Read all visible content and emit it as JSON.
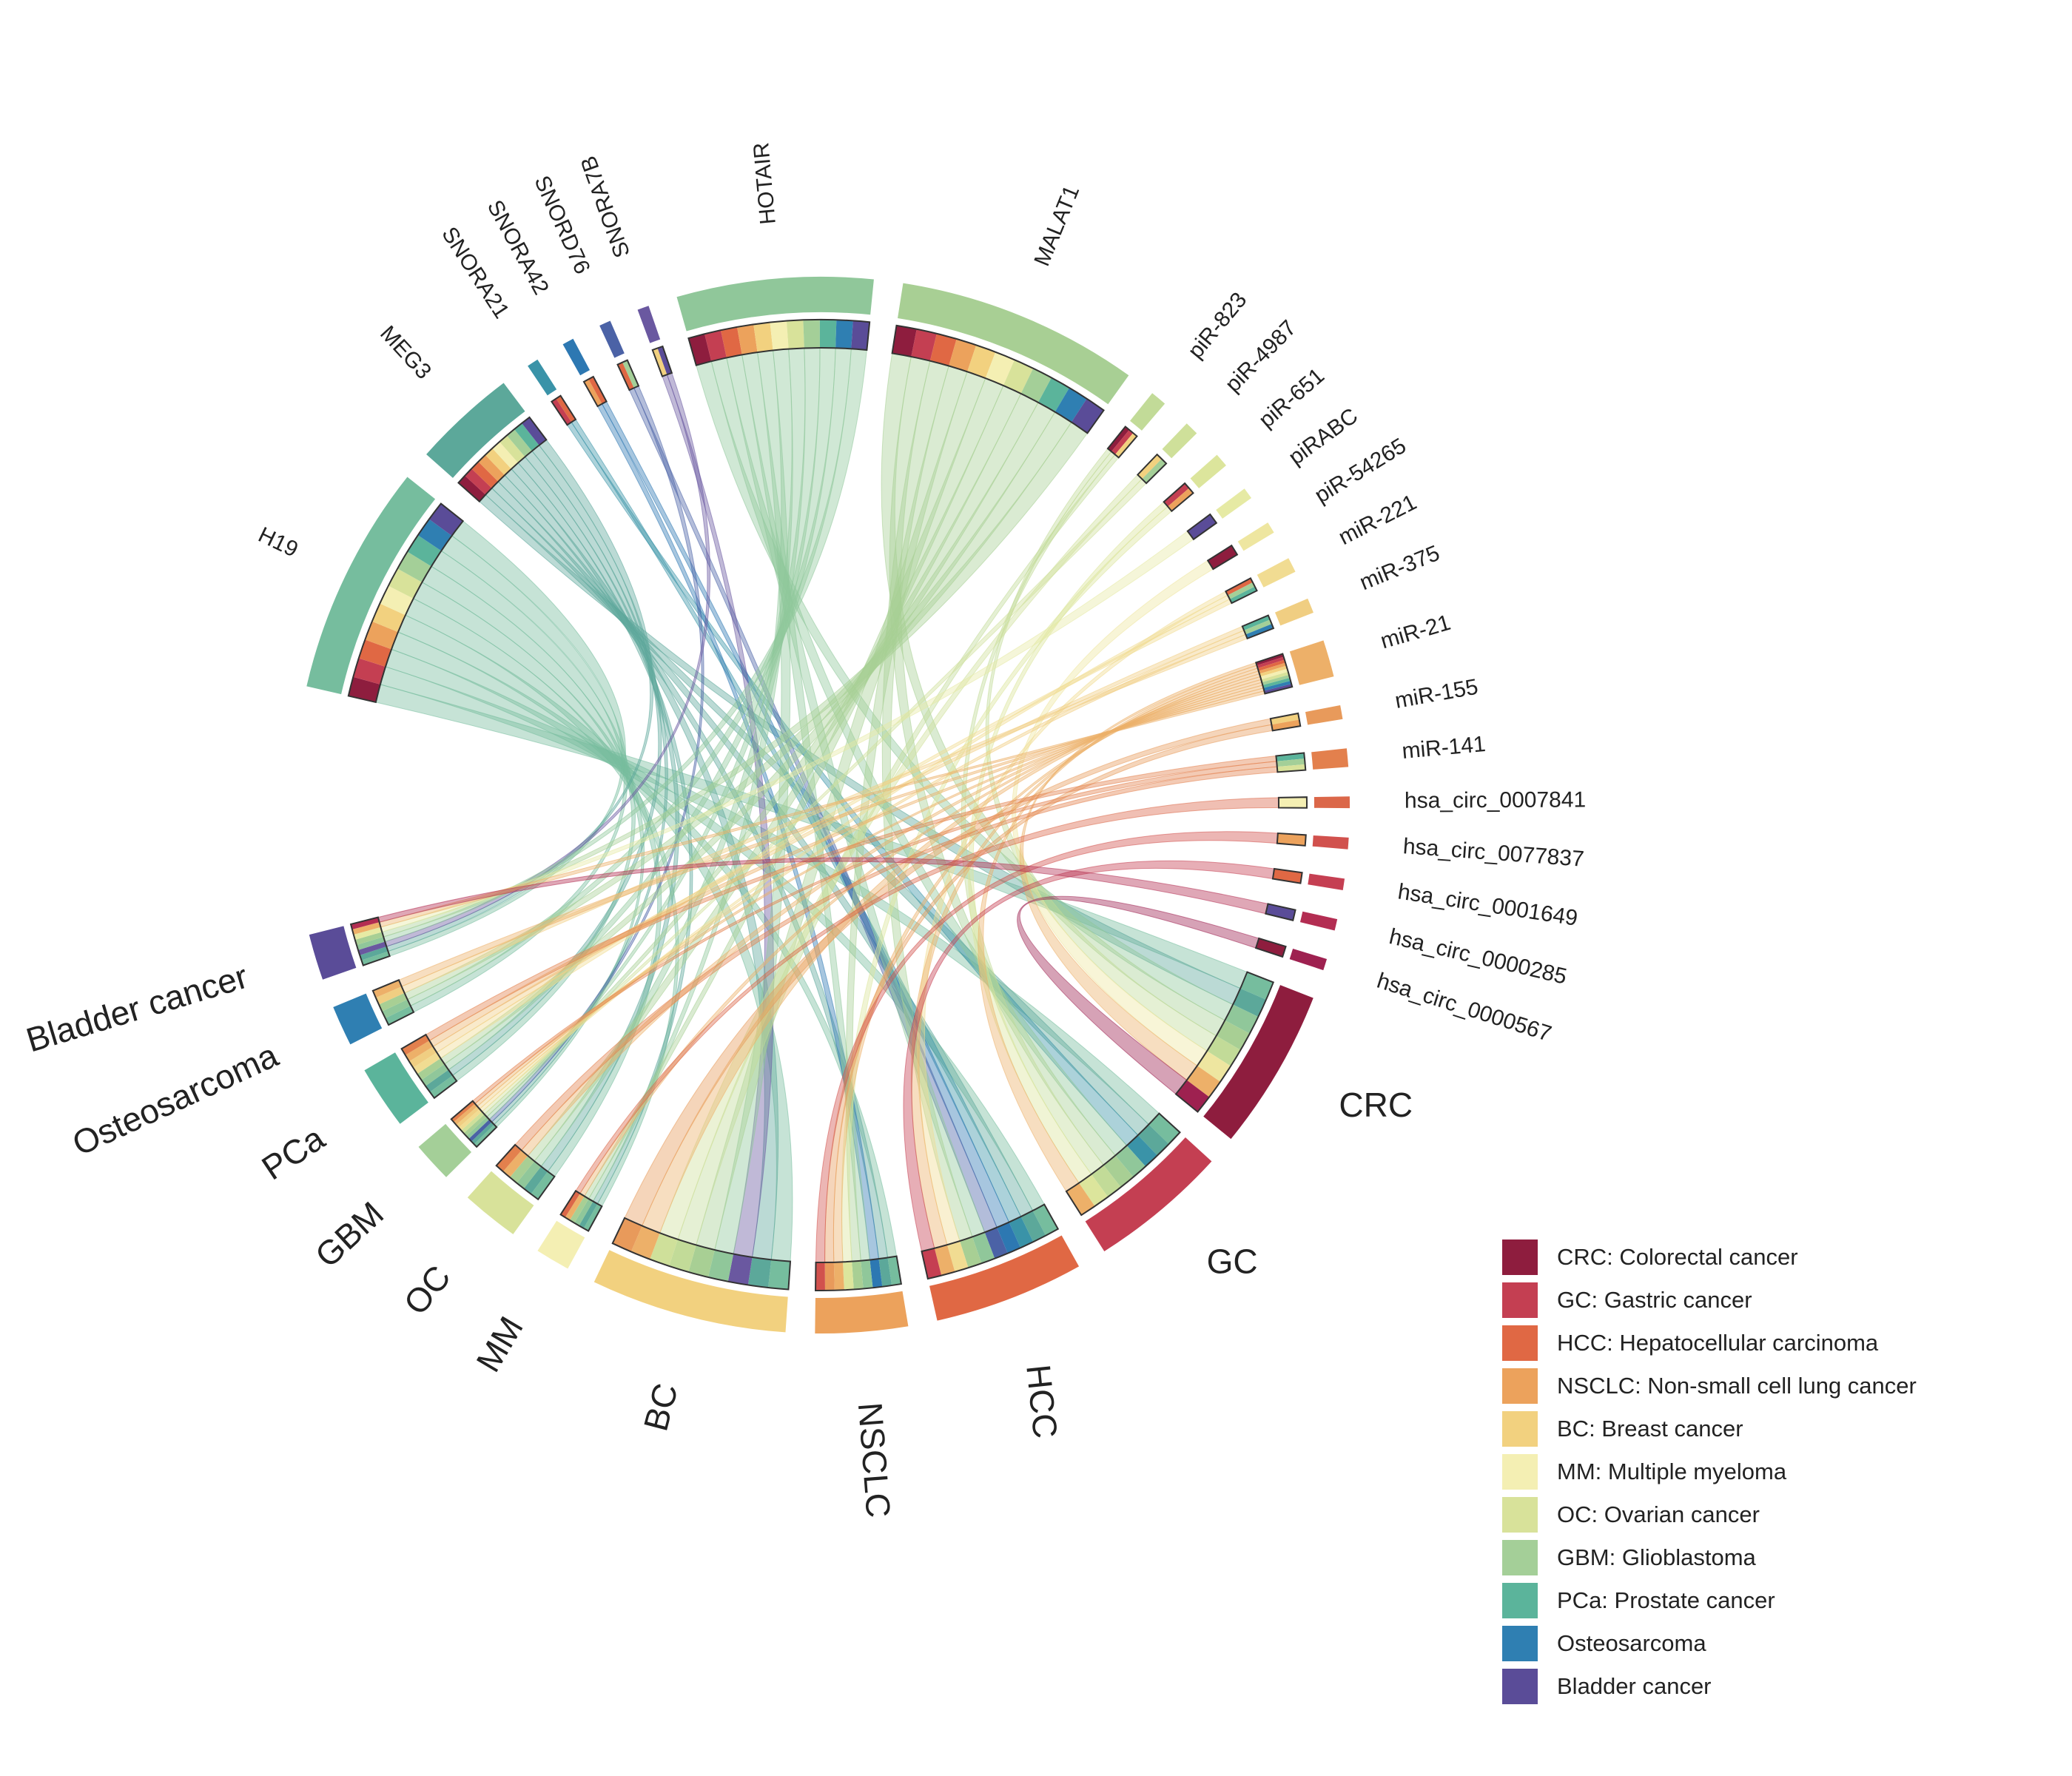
{
  "chart_data": {
    "type": "chord",
    "title": "",
    "sources": [
      {
        "name": "H19",
        "value": 20,
        "targets": [
          "CRC",
          "GC",
          "HCC",
          "NSCLC",
          "BC",
          "MM",
          "OC",
          "GBM",
          "PCa",
          "Osteosarcoma",
          "Bladder cancer"
        ]
      },
      {
        "name": "MEG3",
        "value": 9,
        "targets": [
          "CRC",
          "GC",
          "HCC",
          "NSCLC",
          "BC",
          "MM",
          "OC",
          "GBM",
          "PCa",
          "Bladder cancer"
        ]
      },
      {
        "name": "SNORA21",
        "value": 1,
        "targets": [
          "GC",
          "HCC"
        ]
      },
      {
        "name": "SNORA42",
        "value": 1,
        "targets": [
          "NSCLC",
          "HCC"
        ]
      },
      {
        "name": "SNORD76",
        "value": 1,
        "targets": [
          "HCC",
          "GBM"
        ]
      },
      {
        "name": "SNORA7B",
        "value": 1,
        "targets": [
          "BC",
          "Bladder cancer"
        ]
      },
      {
        "name": "HOTAIR",
        "value": 17,
        "targets": [
          "CRC",
          "GC",
          "HCC",
          "NSCLC",
          "BC",
          "MM",
          "OC",
          "GBM",
          "PCa",
          "Osteosarcoma",
          "Bladder cancer"
        ]
      },
      {
        "name": "MALAT1",
        "value": 21,
        "targets": [
          "CRC",
          "GC",
          "HCC",
          "NSCLC",
          "BC",
          "MM",
          "OC",
          "GBM",
          "PCa",
          "Osteosarcoma",
          "Bladder cancer"
        ]
      },
      {
        "name": "piR-823",
        "value": 1.4,
        "targets": [
          "CRC",
          "GC",
          "BC"
        ]
      },
      {
        "name": "piR-4987",
        "value": 1.2,
        "targets": [
          "BC",
          "GBM"
        ]
      },
      {
        "name": "piR-651",
        "value": 1.2,
        "targets": [
          "GC",
          "NSCLC"
        ]
      },
      {
        "name": "piRABC",
        "value": 1,
        "targets": [
          "Bladder cancer"
        ]
      },
      {
        "name": "piR-54265",
        "value": 1,
        "targets": [
          "CRC"
        ]
      },
      {
        "name": "miR-221",
        "value": 1.3,
        "targets": [
          "HCC",
          "GBM",
          "PCa"
        ]
      },
      {
        "name": "miR-375",
        "value": 1.3,
        "targets": [
          "PCa",
          "GBM",
          "Osteosarcoma"
        ]
      },
      {
        "name": "miR-21",
        "value": 3.2,
        "targets": [
          "CRC",
          "GC",
          "HCC",
          "NSCLC",
          "BC",
          "MM",
          "OC",
          "GBM",
          "PCa",
          "Osteosarcoma",
          "Bladder cancer"
        ]
      },
      {
        "name": "miR-155",
        "value": 1.2,
        "targets": [
          "BC",
          "NSCLC"
        ]
      },
      {
        "name": "miR-141",
        "value": 1.6,
        "targets": [
          "PCa",
          "GBM",
          "OC"
        ]
      },
      {
        "name": "hsa_circ_0007841",
        "value": 1,
        "targets": [
          "MM"
        ]
      },
      {
        "name": "hsa_circ_0077837",
        "value": 1,
        "targets": [
          "NSCLC"
        ]
      },
      {
        "name": "hsa_circ_0001649",
        "value": 1,
        "targets": [
          "HCC"
        ]
      },
      {
        "name": "hsa_circ_0000285",
        "value": 1,
        "targets": [
          "Bladder cancer"
        ]
      },
      {
        "name": "hsa_circ_0000567",
        "value": 1,
        "targets": [
          "CRC"
        ]
      }
    ],
    "cancers": [
      {
        "name": "CRC",
        "value": 14
      },
      {
        "name": "GC",
        "value": 12
      },
      {
        "name": "HCC",
        "value": 13
      },
      {
        "name": "NSCLC",
        "value": 8
      },
      {
        "name": "BC",
        "value": 17
      },
      {
        "name": "MM",
        "value": 3
      },
      {
        "name": "OC",
        "value": 5
      },
      {
        "name": "GBM",
        "value": 3.5
      },
      {
        "name": "PCa",
        "value": 5.5
      },
      {
        "name": "Osteosarcoma",
        "value": 3.5
      },
      {
        "name": "Bladder cancer",
        "value": 4
      }
    ],
    "colors": {
      "CRC": "#8E1D3E",
      "GC": "#C43F52",
      "HCC": "#E06844",
      "NSCLC": "#ECA25C",
      "BC": "#F2D17F",
      "MM": "#F4EFB3",
      "OC": "#D8E29A",
      "GBM": "#A4CF98",
      "PCa": "#5BB49B",
      "Osteosarcoma": "#2F7FB2",
      "Bladder cancer": "#5A4C98"
    },
    "source_colors": {
      "H19": "#76BD9E",
      "MEG3": "#5CA89A",
      "SNORA21": "#3A93A8",
      "SNORA42": "#2D78B2",
      "SNORD76": "#4B62A6",
      "SNORA7B": "#6A58A0",
      "HOTAIR": "#90C79A",
      "MALAT1": "#A8CF94",
      "piR-823": "#C2DB98",
      "piR-4987": "#CFE09A",
      "piR-651": "#DCE59C",
      "piRABC": "#E6EAA4",
      "piR-54265": "#EEE6A0",
      "miR-221": "#F1DC92",
      "miR-375": "#F0CE82",
      "miR-21": "#EDB069",
      "miR-155": "#E89A5B",
      "miR-141": "#E3804D",
      "hsa_circ_0007841": "#DB6749",
      "hsa_circ_0077837": "#D1514D",
      "hsa_circ_0001649": "#C53F52",
      "hsa_circ_0000285": "#B32D52",
      "hsa_circ_0000567": "#9E2150"
    },
    "legend": {
      "position": "bottom-right",
      "entries": [
        {
          "key": "CRC",
          "label": "CRC: Colorectal cancer"
        },
        {
          "key": "GC",
          "label": "GC: Gastric cancer"
        },
        {
          "key": "HCC",
          "label": "HCC: Hepatocellular carcinoma"
        },
        {
          "key": "NSCLC",
          "label": "NSCLC: Non-small cell lung cancer"
        },
        {
          "key": "BC",
          "label": "BC: Breast cancer"
        },
        {
          "key": "MM",
          "label": "MM: Multiple myeloma"
        },
        {
          "key": "OC",
          "label": "OC: Ovarian cancer"
        },
        {
          "key": "GBM",
          "label": "GBM: Glioblastoma"
        },
        {
          "key": "PCa",
          "label": "PCa: Prostate cancer"
        },
        {
          "key": "Osteosarcoma",
          "label": "Osteosarcoma"
        },
        {
          "key": "Bladder cancer",
          "label": "Bladder cancer"
        }
      ]
    }
  }
}
